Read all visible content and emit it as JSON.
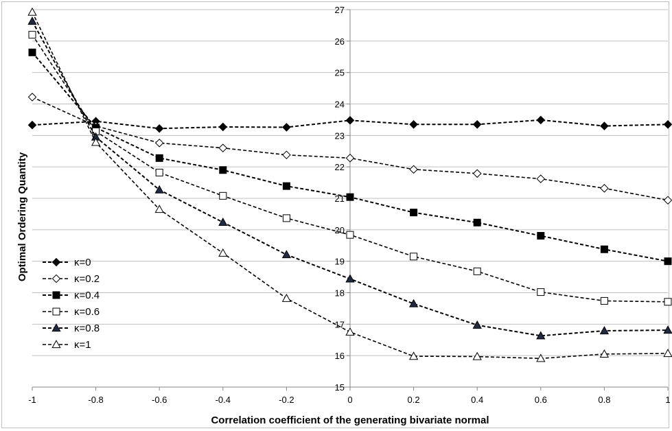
{
  "chart_data": {
    "type": "line",
    "title": "",
    "xlabel": "Correlation coefficient of the generating bivariate normal",
    "ylabel": "Optimal Ordering  Quantity",
    "xlim": [
      -1,
      1
    ],
    "ylim": [
      15,
      27
    ],
    "x": [
      -1,
      -0.8,
      -0.6,
      -0.4,
      -0.2,
      0,
      0.2,
      0.4,
      0.6,
      0.8,
      1
    ],
    "x_tick_labels": [
      "-1",
      "-0.8",
      "-0.6",
      "-0.4",
      "-0.2",
      "0",
      "0.2",
      "0.4",
      "0.6",
      "0.8",
      "1"
    ],
    "y_ticks": [
      15,
      16,
      17,
      18,
      19,
      20,
      21,
      22,
      23,
      24,
      25,
      26,
      27
    ],
    "y_tick_labels": [
      "15",
      "16",
      "17",
      "18",
      "19",
      "20",
      "21",
      "22",
      "23",
      "24",
      "25",
      "26",
      "27"
    ],
    "grid": true,
    "legend_position": "left",
    "series": [
      {
        "name": "κ=0",
        "marker": "diamond",
        "filled": true,
        "values": [
          23.33,
          23.45,
          23.22,
          23.27,
          23.26,
          23.48,
          23.35,
          23.35,
          23.49,
          23.3,
          23.35
        ]
      },
      {
        "name": "κ=0.2",
        "marker": "diamond",
        "filled": false,
        "values": [
          24.22,
          23.3,
          22.76,
          22.6,
          22.38,
          22.28,
          21.92,
          21.79,
          21.62,
          21.32,
          20.94
        ]
      },
      {
        "name": "κ=0.4",
        "marker": "square",
        "filled": true,
        "values": [
          25.64,
          23.25,
          22.28,
          21.9,
          21.39,
          21.04,
          20.55,
          20.23,
          19.81,
          19.38,
          19.0
        ]
      },
      {
        "name": "κ=0.6",
        "marker": "square",
        "filled": false,
        "values": [
          26.2,
          23.13,
          21.82,
          21.08,
          20.37,
          19.84,
          19.15,
          18.68,
          18.02,
          17.74,
          17.71
        ]
      },
      {
        "name": "κ=0.8",
        "marker": "triangle",
        "filled": true,
        "values": [
          26.63,
          22.95,
          21.27,
          20.24,
          19.21,
          18.44,
          17.65,
          16.97,
          16.63,
          16.79,
          16.81
        ]
      },
      {
        "name": "κ=1",
        "marker": "triangle",
        "filled": false,
        "values": [
          26.92,
          22.78,
          20.65,
          19.26,
          17.82,
          16.75,
          15.98,
          15.97,
          15.91,
          16.05,
          16.07
        ]
      }
    ],
    "colors": {
      "line": "#000000",
      "grid": "#bfbfbf",
      "marker_fill_dark": "#000000",
      "marker_fill_navy": "#1f2a44",
      "marker_fill_light": "#ffffff"
    }
  }
}
